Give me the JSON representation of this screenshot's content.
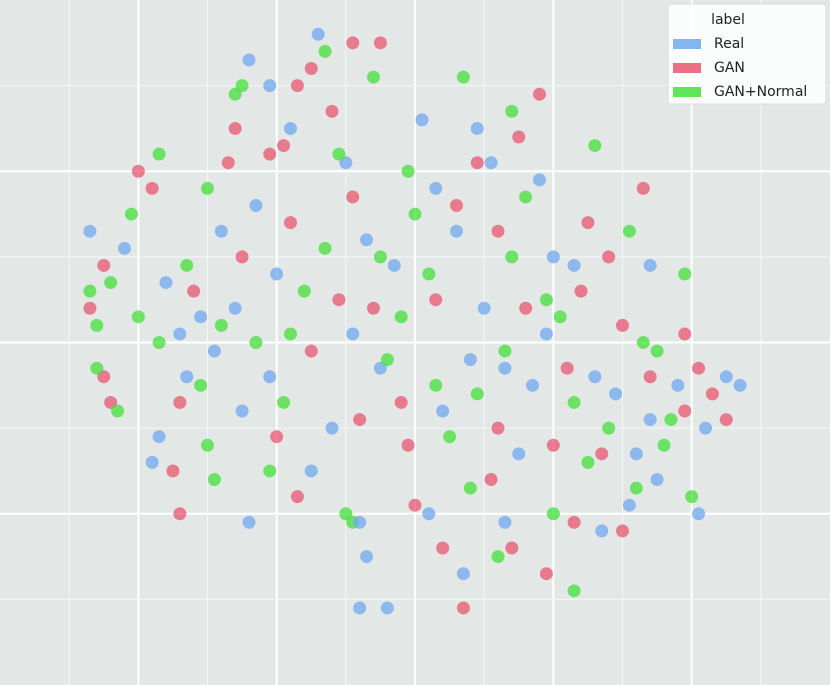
{
  "chart_data": {
    "type": "scatter",
    "xlim": [
      0,
      12
    ],
    "ylim": [
      0,
      8
    ],
    "xticks": [
      1,
      2,
      3,
      4,
      5,
      6,
      7,
      8,
      9,
      10,
      11
    ],
    "yticks": [
      1,
      2,
      3,
      4,
      5,
      6,
      7
    ],
    "grid": true,
    "legend_title": "label",
    "legend": "upper right",
    "series": [
      {
        "name": "Real",
        "color": "#6fa8f0",
        "x": [
          1.3,
          1.8,
          2.4,
          2.6,
          2.9,
          3.1,
          2.7,
          3.4,
          2.3,
          2.2,
          3.6,
          3.5,
          3.9,
          4.0,
          3.7,
          3.2,
          3.6,
          3.9,
          4.2,
          4.6,
          5.0,
          5.3,
          5.7,
          5.1,
          5.5,
          4.8,
          4.5,
          5.2,
          5.3,
          5.6,
          6.1,
          6.3,
          6.6,
          6.9,
          7.1,
          7.0,
          6.8,
          6.4,
          6.2,
          6.7,
          7.3,
          7.5,
          7.7,
          7.3,
          7.9,
          8.0,
          7.8,
          8.3,
          8.6,
          8.9,
          9.2,
          9.1,
          9.5,
          9.4,
          9.8,
          10.2,
          10.5,
          10.7,
          10.1,
          8.7,
          9.4,
          5.2
        ],
        "values": [
          5.3,
          5.1,
          4.7,
          4.1,
          4.3,
          3.9,
          3.6,
          4.4,
          2.9,
          2.6,
          1.9,
          3.2,
          3.6,
          4.8,
          5.6,
          5.3,
          7.3,
          7.0,
          6.5,
          7.6,
          6.1,
          5.2,
          4.9,
          4.1,
          3.7,
          3.0,
          2.5,
          1.9,
          1.5,
          0.9,
          6.6,
          5.8,
          5.3,
          6.5,
          6.1,
          4.4,
          3.8,
          3.2,
          2.0,
          1.3,
          1.9,
          2.7,
          3.5,
          3.7,
          4.1,
          5.0,
          5.9,
          4.9,
          3.6,
          3.4,
          2.7,
          2.1,
          2.4,
          3.1,
          3.5,
          3.0,
          3.6,
          3.5,
          2.0,
          1.8,
          4.9,
          0.9
        ]
      },
      {
        "name": "GAN",
        "color": "#e8576f",
        "x": [
          1.3,
          1.5,
          1.6,
          1.5,
          2.0,
          2.2,
          2.6,
          2.5,
          2.6,
          2.8,
          3.3,
          3.4,
          3.5,
          3.9,
          4.1,
          4.2,
          4.0,
          4.3,
          4.5,
          4.3,
          4.5,
          4.8,
          5.1,
          5.5,
          5.1,
          5.4,
          5.8,
          5.9,
          6.0,
          6.4,
          6.7,
          6.3,
          6.6,
          6.9,
          7.2,
          7.5,
          7.8,
          7.6,
          7.1,
          7.4,
          7.9,
          8.3,
          8.0,
          8.2,
          8.5,
          8.8,
          9.3,
          9.0,
          8.7,
          9.0,
          9.4,
          9.9,
          10.1,
          10.3,
          10.5,
          9.9,
          8.4,
          7.2,
          5.2,
          4.9
        ],
        "values": [
          4.4,
          3.6,
          3.3,
          4.9,
          6.0,
          5.8,
          3.3,
          2.5,
          2.0,
          4.6,
          6.1,
          6.5,
          5.0,
          6.2,
          6.3,
          5.4,
          2.9,
          2.2,
          3.9,
          7.0,
          7.2,
          6.7,
          7.5,
          7.5,
          5.7,
          4.4,
          3.3,
          2.8,
          2.1,
          1.6,
          0.9,
          4.5,
          5.6,
          6.1,
          5.3,
          6.4,
          6.9,
          4.4,
          2.4,
          1.6,
          1.3,
          1.9,
          2.8,
          3.7,
          5.4,
          5.0,
          5.8,
          4.2,
          2.7,
          1.8,
          3.6,
          3.2,
          3.7,
          3.4,
          3.1,
          4.1,
          4.6,
          3.0,
          3.1,
          4.5
        ]
      },
      {
        "name": "GAN+Normal",
        "color": "#44e03a",
        "x": [
          1.3,
          1.4,
          1.6,
          1.4,
          1.7,
          1.9,
          2.3,
          2.3,
          2.7,
          2.9,
          3.0,
          3.1,
          3.0,
          3.4,
          3.5,
          3.7,
          3.9,
          4.1,
          4.4,
          4.7,
          4.9,
          4.7,
          5.4,
          5.0,
          5.1,
          5.6,
          5.8,
          5.9,
          6.0,
          6.2,
          6.3,
          6.5,
          6.8,
          7.2,
          6.7,
          7.4,
          7.6,
          7.4,
          7.9,
          8.1,
          8.3,
          8.5,
          8.6,
          8.0,
          8.3,
          9.1,
          9.3,
          9.5,
          9.7,
          9.6,
          9.9,
          9.2,
          10.0,
          6.9,
          4.2,
          3.2,
          5.5,
          8.8,
          7.3,
          2.0
        ],
        "values": [
          4.6,
          4.2,
          4.7,
          3.7,
          3.2,
          5.5,
          6.2,
          4.0,
          4.9,
          3.5,
          2.8,
          2.4,
          5.8,
          6.9,
          7.0,
          4.0,
          2.5,
          3.3,
          4.6,
          5.1,
          6.2,
          7.4,
          7.1,
          2.0,
          1.9,
          3.8,
          4.3,
          6.0,
          5.5,
          4.8,
          3.5,
          2.9,
          2.3,
          1.5,
          7.1,
          6.7,
          5.7,
          5.0,
          4.5,
          4.3,
          3.3,
          2.6,
          6.3,
          2.0,
          1.1,
          5.3,
          4.0,
          3.9,
          3.1,
          2.8,
          4.8,
          2.3,
          2.2,
          3.4,
          4.1,
          4.2,
          5.0,
          3.0,
          3.9,
          4.3
        ]
      }
    ]
  }
}
